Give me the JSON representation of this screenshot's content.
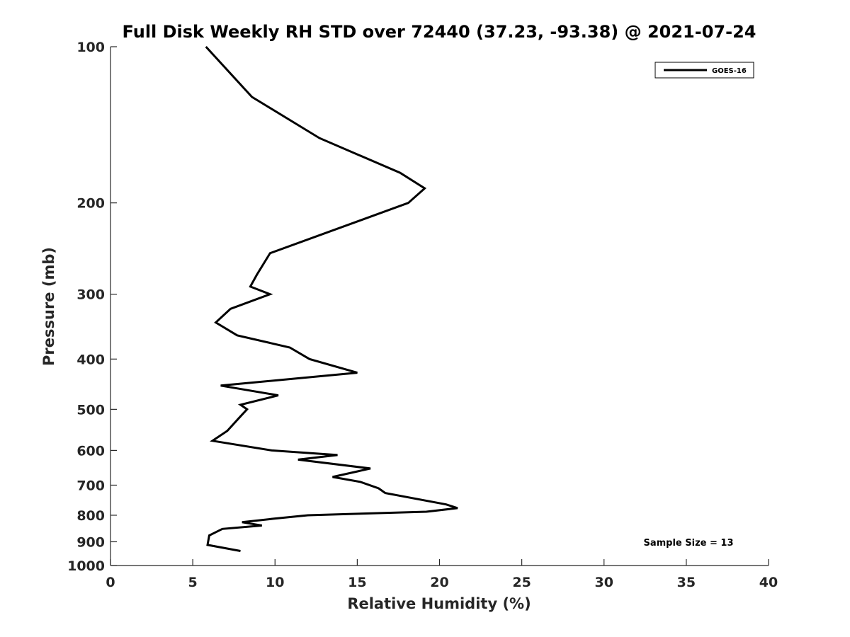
{
  "chart_data": {
    "type": "line",
    "title": "Full Disk Weekly RH STD over 72440 (37.23, -93.38) @ 2021-07-24",
    "xlabel": "Relative Humidity (%)",
    "ylabel": "Pressure (mb)",
    "xlim": [
      0,
      40
    ],
    "ylim": [
      100,
      1000
    ],
    "y_scale": "log",
    "y_inverted": true,
    "x_ticks": [
      "0",
      "5",
      "10",
      "15",
      "20",
      "25",
      "30",
      "35",
      "40"
    ],
    "y_ticks": [
      "100",
      "200",
      "300",
      "400",
      "500",
      "600",
      "700",
      "800",
      "900",
      "1000"
    ],
    "grid": false,
    "legend_position": "top-right",
    "annotation": "Sample Size = 13",
    "series": [
      {
        "name": "GOES-16",
        "color": "#000000",
        "points": [
          [
            5.8,
            100
          ],
          [
            8.6,
            125
          ],
          [
            12.7,
            150
          ],
          [
            17.6,
            175
          ],
          [
            19.1,
            187.5
          ],
          [
            18.1,
            200
          ],
          [
            9.7,
            250
          ],
          [
            8.9,
            275
          ],
          [
            8.5,
            290
          ],
          [
            9.7,
            300
          ],
          [
            7.3,
            320
          ],
          [
            6.4,
            340
          ],
          [
            7.7,
            360
          ],
          [
            10.9,
            380
          ],
          [
            12.1,
            400
          ],
          [
            15.0,
            425
          ],
          [
            6.7,
            450
          ],
          [
            10.2,
            470
          ],
          [
            7.9,
            490
          ],
          [
            8.3,
            500
          ],
          [
            7.8,
            520
          ],
          [
            7.1,
            550
          ],
          [
            6.2,
            575
          ],
          [
            9.8,
            600
          ],
          [
            13.8,
            612.5
          ],
          [
            11.4,
            625
          ],
          [
            15.8,
            650
          ],
          [
            13.5,
            675
          ],
          [
            15.2,
            690
          ],
          [
            16.3,
            710
          ],
          [
            16.7,
            725
          ],
          [
            20.4,
            762.5
          ],
          [
            21.1,
            775
          ],
          [
            19.2,
            787.5
          ],
          [
            12.0,
            800
          ],
          [
            9.9,
            812.5
          ],
          [
            8.0,
            825
          ],
          [
            9.2,
            837.5
          ],
          [
            6.8,
            850
          ],
          [
            6.0,
            875
          ],
          [
            5.9,
            912.5
          ],
          [
            7.9,
            937.5
          ]
        ]
      }
    ]
  }
}
